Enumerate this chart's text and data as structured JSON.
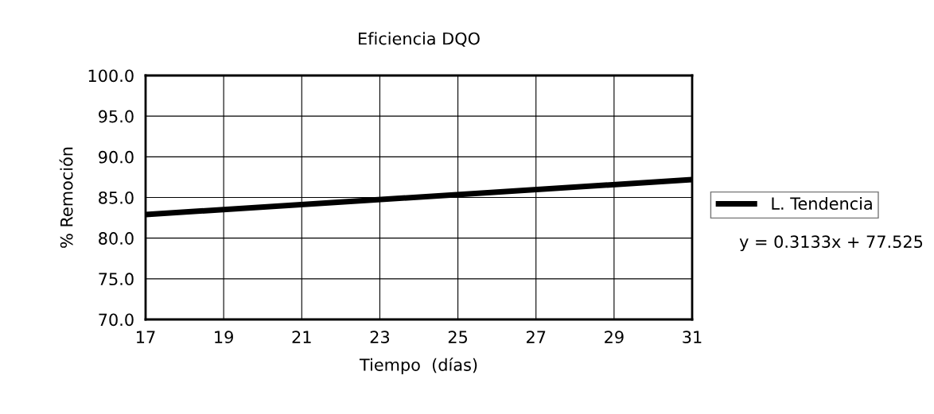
{
  "chart_data": {
    "type": "line",
    "title": "Eficiencia DQO",
    "xlabel": "Tiempo  (días)",
    "ylabel": "% Remoción",
    "x": [
      17,
      31
    ],
    "series": [
      {
        "name": "L. Tendencia",
        "color": "#000000",
        "values": [
          82.9,
          87.2
        ]
      }
    ],
    "xlim": [
      17,
      31
    ],
    "xticks": [
      17,
      19,
      21,
      23,
      25,
      27,
      29,
      31
    ],
    "ylim": [
      70,
      100
    ],
    "yticks": [
      {
        "value": 70,
        "label": "70.0"
      },
      {
        "value": 75,
        "label": "75.0"
      },
      {
        "value": 80,
        "label": "80.0"
      },
      {
        "value": 85,
        "label": "85.0"
      },
      {
        "value": 90,
        "label": "90.0"
      },
      {
        "value": 95,
        "label": "95.0"
      },
      {
        "value": 100,
        "label": "100.0"
      }
    ],
    "grid": true,
    "legend": "right",
    "marker": "none",
    "line_style": "solid",
    "annotations": [
      "y = 0.3133x + 77.525"
    ]
  }
}
